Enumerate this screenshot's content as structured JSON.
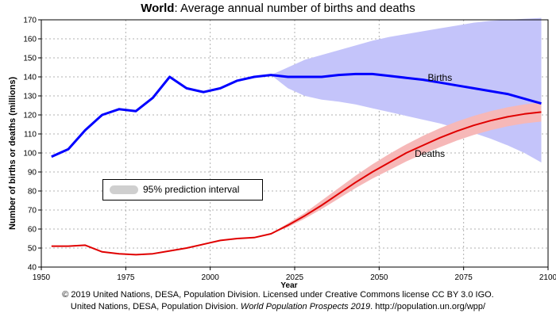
{
  "header": {
    "title_bold": "World",
    "title_rest": ": Average annual number of births and deaths"
  },
  "credits": {
    "line1": "© 2019 United Nations, DESA, Population Division. Licensed under Creative Commons license CC BY 3.0 IGO.",
    "line2_prefix": "United Nations, DESA, Population Division. ",
    "line2_italic": "World Population Prospects 2019",
    "line2_suffix": ". http://population.un.org/wpp/"
  },
  "legend": {
    "label": "95% prediction interval"
  },
  "colors": {
    "births_line": "#0000ff",
    "births_band": "#c4c4fa",
    "deaths_line": "#e00000",
    "deaths_band": "#f6b8b8",
    "grid": "#b0b0b0"
  },
  "chart_data": {
    "type": "line",
    "title": "World: Average annual number of births and deaths",
    "xlabel": "Year",
    "ylabel": "Number of births or deaths (millions)",
    "xlim": [
      1950,
      2100
    ],
    "ylim": [
      40,
      170
    ],
    "xticks": [
      1950,
      1975,
      2000,
      2025,
      2050,
      2075,
      2100
    ],
    "yticks": [
      40,
      50,
      60,
      70,
      80,
      90,
      100,
      110,
      120,
      130,
      140,
      150,
      160,
      170
    ],
    "grid": true,
    "series": [
      {
        "name": "Births",
        "label_at": [
          2068,
          138
        ],
        "x": [
          1953,
          1958,
          1963,
          1968,
          1973,
          1978,
          1983,
          1988,
          1993,
          1998,
          2003,
          2008,
          2013,
          2018,
          2023,
          2028,
          2033,
          2038,
          2043,
          2048,
          2053,
          2058,
          2063,
          2068,
          2073,
          2078,
          2083,
          2088,
          2093,
          2098
        ],
        "values": [
          98,
          102,
          112,
          120,
          123,
          122,
          129,
          140,
          134,
          132,
          134,
          138,
          140,
          141,
          140,
          140,
          140,
          141,
          141.5,
          141.5,
          140.5,
          139.5,
          138.5,
          137,
          135.5,
          134,
          132.5,
          131,
          128.5,
          126
        ],
        "interval": {
          "x": [
            2018,
            2023,
            2028,
            2033,
            2038,
            2043,
            2048,
            2053,
            2058,
            2063,
            2068,
            2073,
            2078,
            2083,
            2088,
            2093,
            2098
          ],
          "upper": [
            141,
            145,
            149,
            151.5,
            154,
            156.5,
            159,
            161,
            162.5,
            164,
            165.5,
            167,
            168.5,
            169.5,
            170,
            170.5,
            171
          ],
          "lower": [
            141,
            134,
            130,
            128,
            127,
            125.5,
            123.5,
            121.5,
            119.5,
            117.5,
            115.5,
            113,
            110.5,
            107.5,
            104,
            100,
            95
          ]
        }
      },
      {
        "name": "Deaths",
        "label_at": [
          2065,
          98
        ],
        "x": [
          1953,
          1958,
          1963,
          1968,
          1973,
          1978,
          1983,
          1988,
          1993,
          1998,
          2003,
          2008,
          2013,
          2018,
          2023,
          2028,
          2033,
          2038,
          2043,
          2048,
          2053,
          2058,
          2063,
          2068,
          2073,
          2078,
          2083,
          2088,
          2093,
          2098
        ],
        "values": [
          51,
          51,
          51.5,
          48,
          47,
          46.5,
          47,
          48.5,
          50,
          52,
          54,
          55,
          55.5,
          57.5,
          62,
          67,
          72.5,
          78.5,
          84.5,
          90,
          95,
          100,
          104,
          108,
          111.5,
          114.5,
          117,
          119,
          120.5,
          121.5
        ],
        "interval": {
          "x": [
            2018,
            2023,
            2028,
            2033,
            2038,
            2043,
            2048,
            2053,
            2058,
            2063,
            2068,
            2073,
            2078,
            2083,
            2088,
            2093,
            2098
          ],
          "upper": [
            57.5,
            63,
            68.5,
            75,
            81.5,
            88,
            94,
            99.5,
            104.5,
            109,
            113,
            116.5,
            119.5,
            122,
            124,
            125.5,
            126.5
          ],
          "lower": [
            57.5,
            61,
            65.5,
            70.5,
            76,
            81.5,
            86.5,
            91,
            95.5,
            99.5,
            103,
            106.5,
            109.5,
            112,
            114,
            115.5,
            116.5
          ]
        }
      }
    ]
  }
}
